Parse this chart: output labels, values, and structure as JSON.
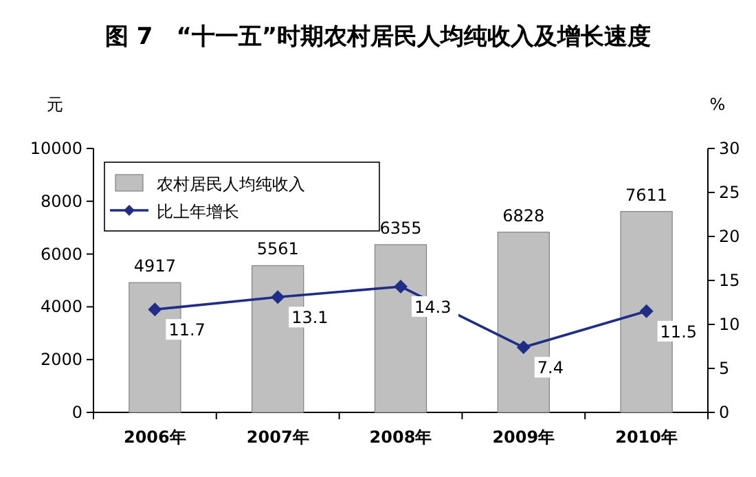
{
  "chart_data": {
    "type": "bar",
    "title": "图 7　“十一五”时期农村居民人均纯收入及增长速度",
    "ylabel": "元",
    "y2label": "%",
    "categories": [
      "2006年",
      "2007年",
      "2008年",
      "2009年",
      "2010年"
    ],
    "series": [
      {
        "name": "农村居民人均纯收入",
        "color": "#bfbfbf",
        "values": [
          4917,
          5561,
          6355,
          6828,
          7611
        ]
      },
      {
        "name": "比上年增长",
        "type": "line",
        "axis": "y2",
        "color": "#1f2d86",
        "marker": "diamond",
        "values": [
          11.7,
          13.1,
          14.3,
          7.4,
          11.5
        ]
      }
    ],
    "ylim": [
      0,
      10000
    ],
    "yticks": [
      0,
      2000,
      4000,
      6000,
      8000,
      10000
    ],
    "y2lim": [
      0,
      30
    ],
    "y2ticks": [
      0,
      5,
      10,
      15,
      20,
      25,
      30
    ],
    "data_labels": true,
    "legend": "top left"
  }
}
